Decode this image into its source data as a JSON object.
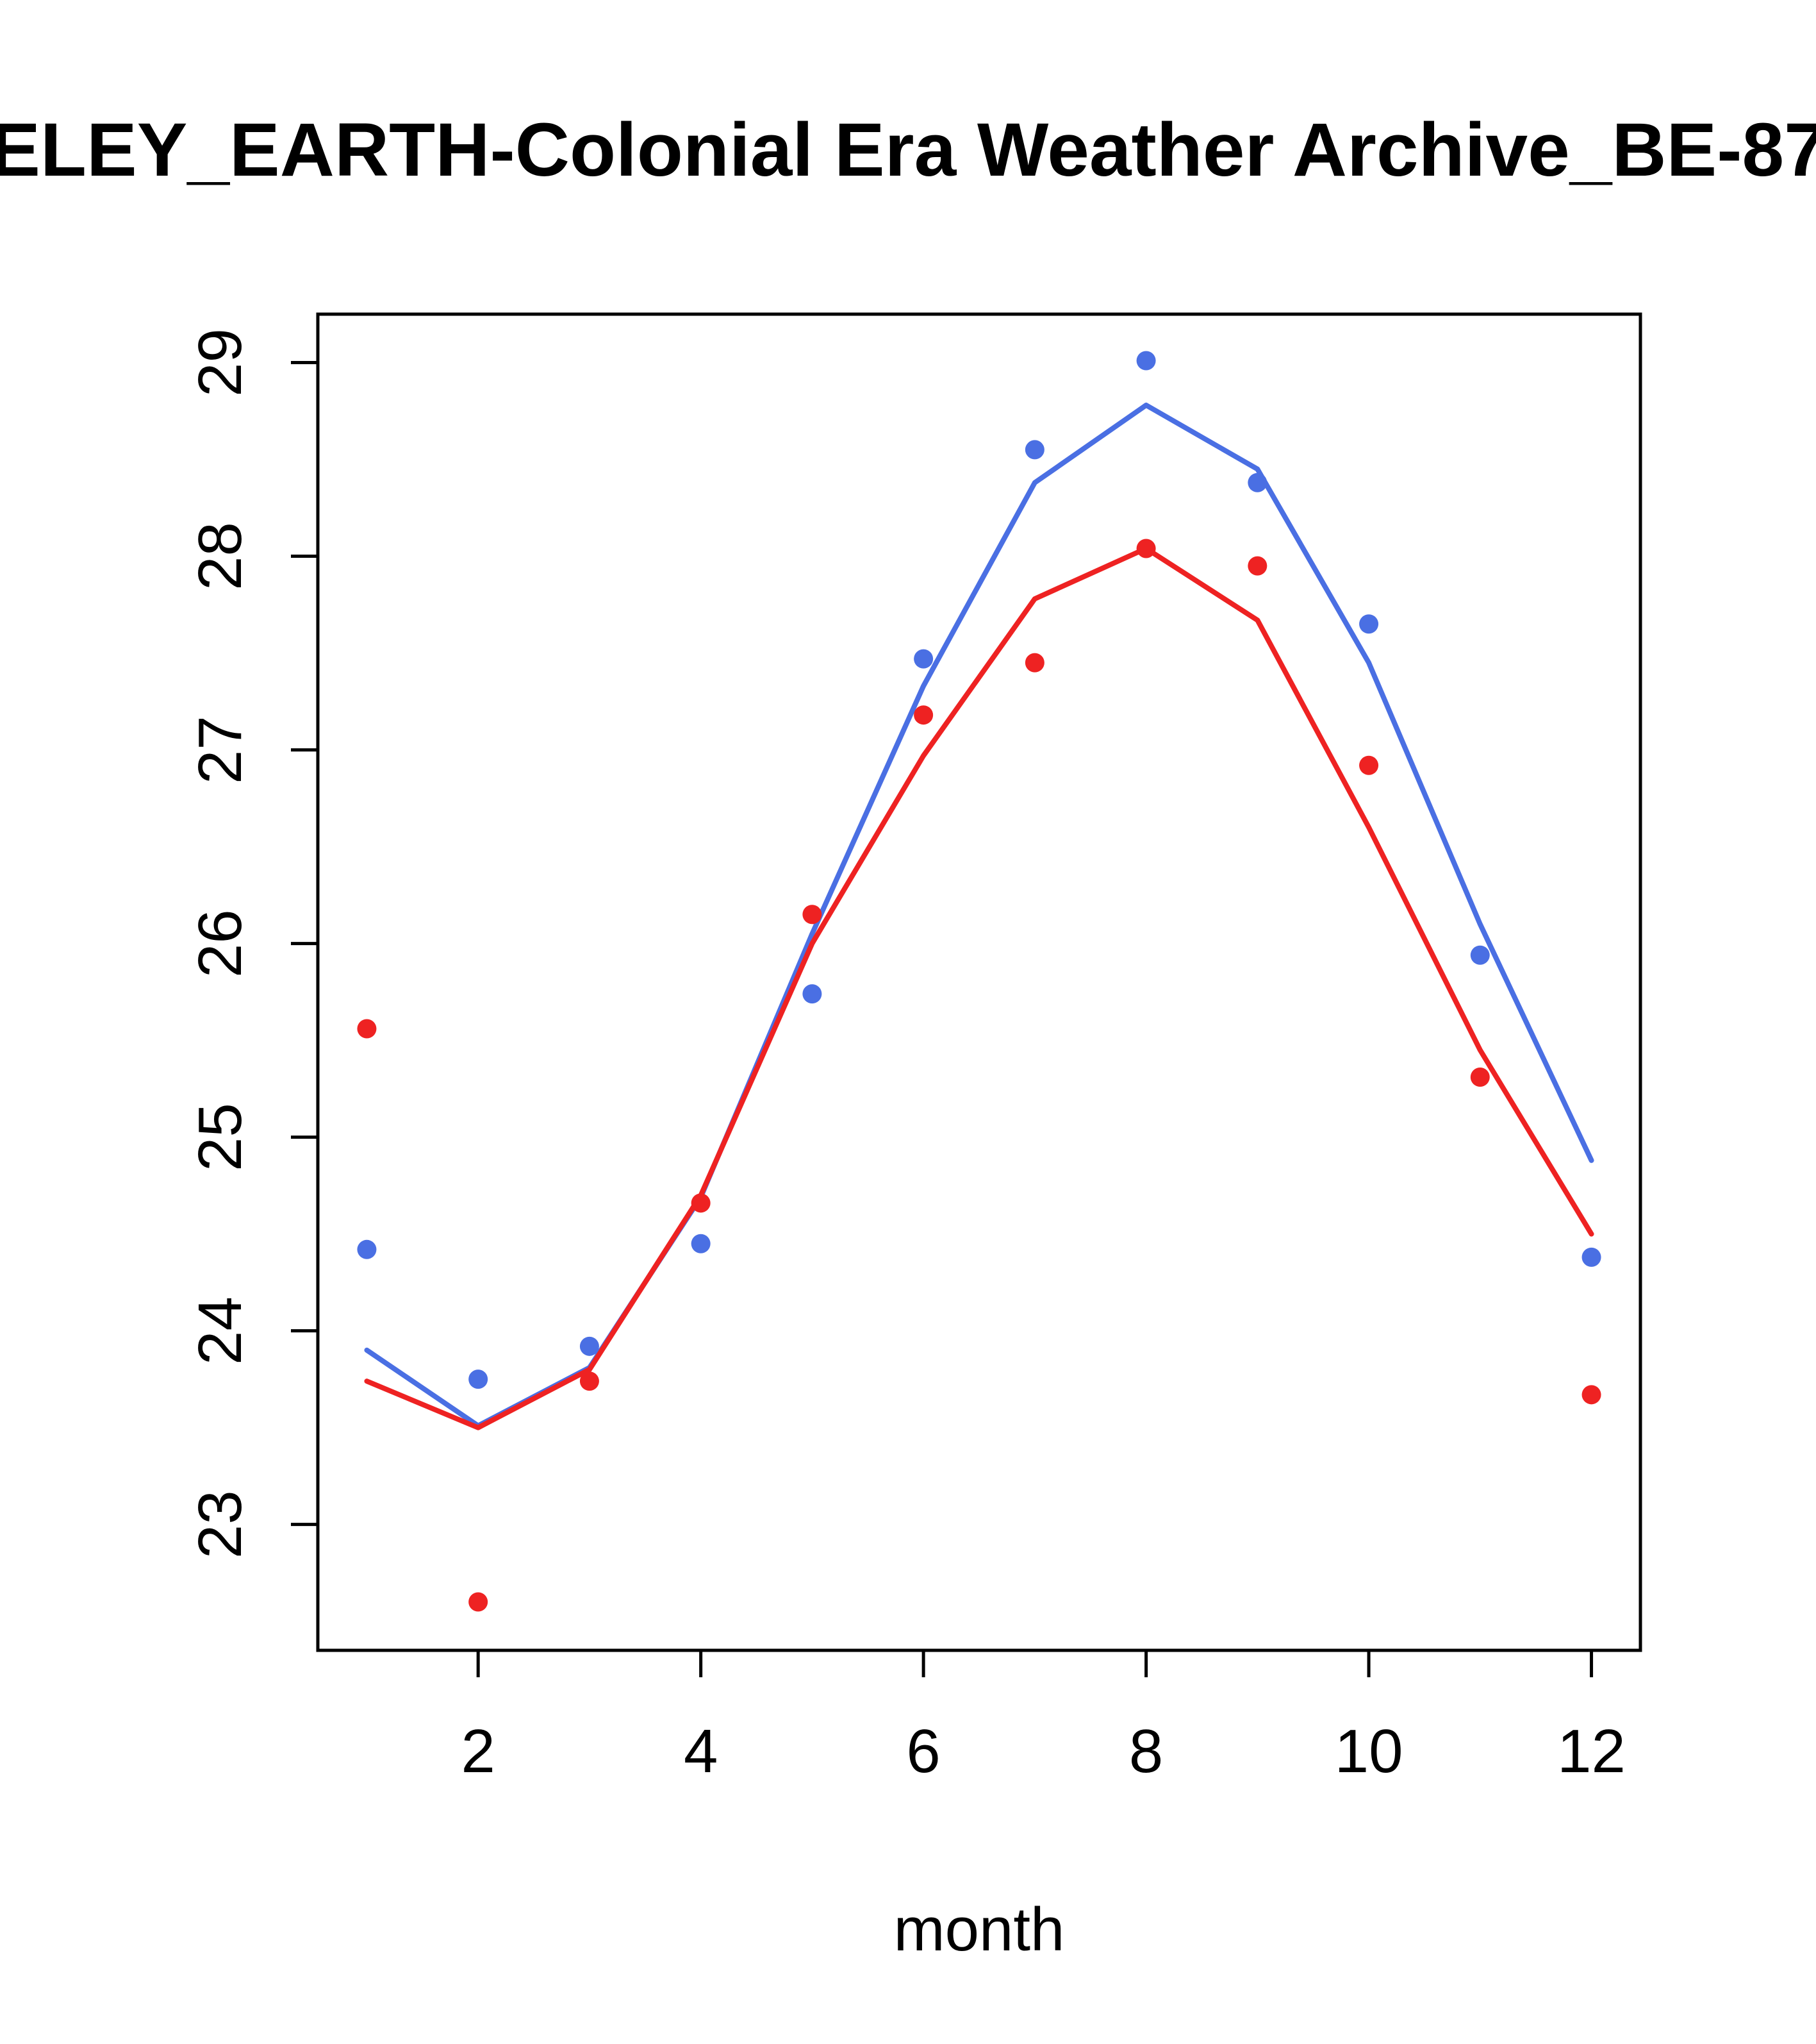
{
  "chart_data": {
    "type": "scatter",
    "title": "ELEY_EARTH-Colonial Era Weather Archive_BE-87",
    "xlabel": "month",
    "ylabel": "",
    "xlim": [
      0.56,
      12.44
    ],
    "ylim": [
      22.35,
      29.25
    ],
    "x_ticks": [
      2,
      4,
      6,
      8,
      10,
      12
    ],
    "y_ticks": [
      23,
      24,
      25,
      26,
      27,
      28,
      29
    ],
    "x": [
      1,
      2,
      3,
      4,
      5,
      6,
      7,
      8,
      9,
      10,
      11,
      12
    ],
    "series": [
      {
        "name": "observed-blue",
        "kind": "points",
        "color": "#4a6fe3",
        "values": [
          24.42,
          23.75,
          23.92,
          24.45,
          25.74,
          27.47,
          28.55,
          29.01,
          28.38,
          27.65,
          25.94,
          24.38
        ]
      },
      {
        "name": "observed-red",
        "kind": "points",
        "color": "#ee2222",
        "values": [
          25.56,
          22.6,
          23.74,
          24.66,
          26.15,
          27.18,
          27.45,
          28.04,
          27.95,
          26.92,
          25.31,
          23.67
        ]
      },
      {
        "name": "fit-blue",
        "kind": "line",
        "color": "#4a6fe3",
        "values": [
          23.9,
          23.51,
          23.81,
          24.69,
          26.05,
          27.33,
          28.38,
          28.78,
          28.45,
          27.45,
          26.1,
          24.88
        ]
      },
      {
        "name": "fit-red",
        "kind": "line",
        "color": "#ee2222",
        "values": [
          23.74,
          23.5,
          23.8,
          24.7,
          26.0,
          26.97,
          27.78,
          28.04,
          27.67,
          26.6,
          25.45,
          24.5
        ]
      }
    ],
    "axis_color": "#000000",
    "background": "#ffffff"
  }
}
